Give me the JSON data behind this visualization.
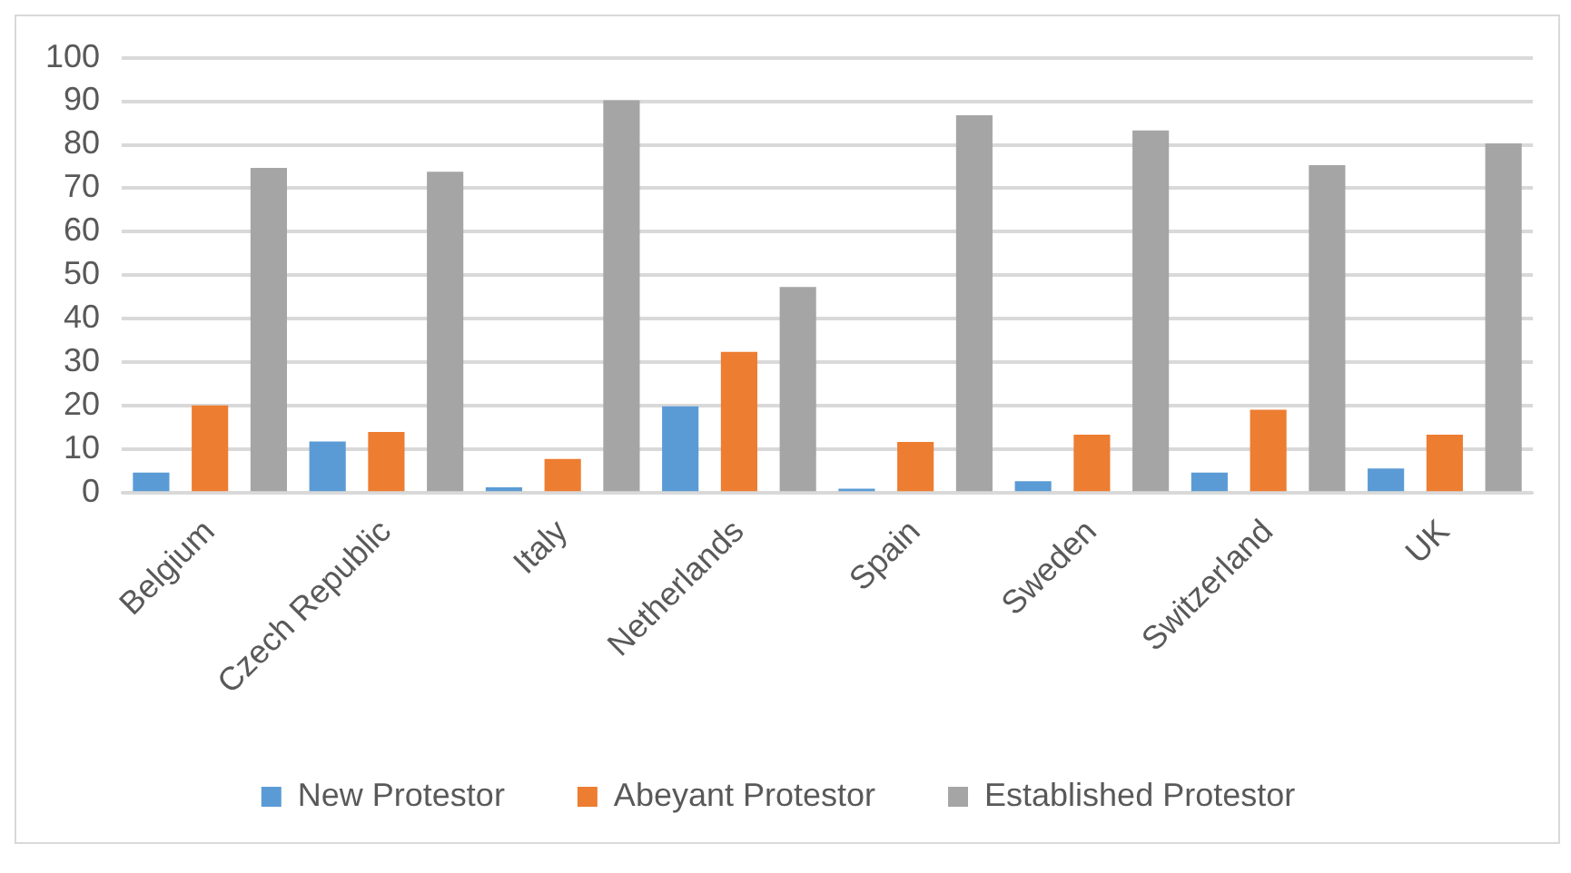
{
  "chart_data": {
    "type": "bar",
    "categories": [
      "Belgium",
      "Czech Republic",
      "Italy",
      "Netherlands",
      "Spain",
      "Sweden",
      "Switzerland",
      "UK"
    ],
    "series": [
      {
        "name": "New Protestor",
        "color": "#5b9bd5",
        "values": [
          4.7,
          11.8,
          1.3,
          19.9,
          1.0,
          2.7,
          4.7,
          5.6
        ]
      },
      {
        "name": "Abeyant Protestor",
        "color": "#ed7d31",
        "values": [
          20.1,
          14.0,
          7.8,
          32.4,
          11.7,
          13.4,
          19.1,
          13.4
        ]
      },
      {
        "name": "Established Protestor",
        "color": "#a5a5a5",
        "values": [
          74.7,
          73.8,
          90.2,
          47.3,
          86.8,
          83.3,
          75.3,
          80.3
        ]
      }
    ],
    "ylim": [
      0,
      100
    ],
    "yticks": [
      0,
      10,
      20,
      30,
      40,
      50,
      60,
      70,
      80,
      90,
      100
    ],
    "grid": "y",
    "legend": "bottom"
  }
}
